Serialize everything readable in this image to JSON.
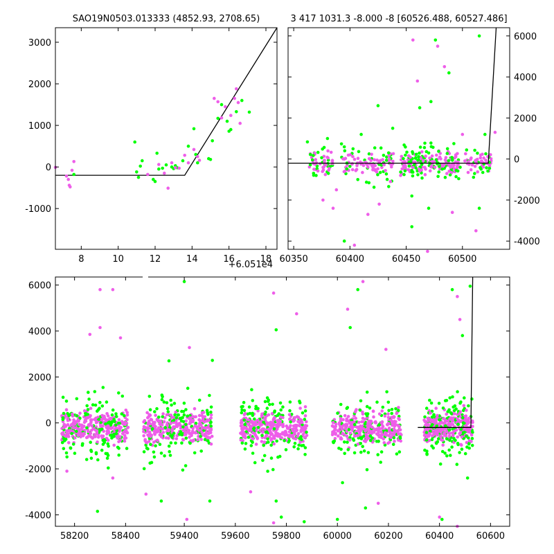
{
  "chart_data": [
    {
      "id": "zoom-left",
      "type": "scatter",
      "title": "SAO19N0503.013333 (4852.93, 2708.65)",
      "xlabel": "",
      "ylabel": "",
      "xlim": [
        6.6,
        18.6
      ],
      "ylim": [
        -1980,
        3350
      ],
      "xticks": [
        8,
        10,
        12,
        14,
        16,
        18
      ],
      "yticks": [
        -1000,
        0,
        1000,
        2000,
        3000
      ],
      "offset_text": "+6.051e4",
      "grid": false,
      "colors": {
        "green": "#00ff00",
        "magenta": "#ee5ee9",
        "model": "#000000"
      },
      "model_line": [
        [
          6.6,
          -200
        ],
        [
          13.6,
          -200
        ],
        [
          18.6,
          3350
        ]
      ],
      "series": [
        {
          "color": "green",
          "points": [
            [
              7.6,
              -180
            ],
            [
              10.9,
              600
            ],
            [
              11.0,
              -120
            ],
            [
              11.1,
              -250
            ],
            [
              11.2,
              20
            ],
            [
              11.3,
              150
            ],
            [
              11.9,
              -300
            ],
            [
              12.0,
              -350
            ],
            [
              12.1,
              330
            ],
            [
              12.2,
              -50
            ],
            [
              12.4,
              -30
            ],
            [
              12.6,
              50
            ],
            [
              12.9,
              0
            ],
            [
              13.0,
              -40
            ],
            [
              13.1,
              30
            ],
            [
              13.2,
              -20
            ],
            [
              13.5,
              150
            ],
            [
              13.8,
              500
            ],
            [
              14.1,
              920
            ],
            [
              14.2,
              300
            ],
            [
              14.3,
              100
            ],
            [
              14.9,
              200
            ],
            [
              15.0,
              180
            ],
            [
              15.1,
              630
            ],
            [
              15.4,
              1170
            ],
            [
              15.6,
              1500
            ],
            [
              15.9,
              1100
            ],
            [
              16.0,
              860
            ],
            [
              16.1,
              900
            ],
            [
              16.4,
              1330
            ],
            [
              16.7,
              1600
            ],
            [
              17.1,
              1320
            ]
          ]
        },
        {
          "color": "magenta",
          "points": [
            [
              6.6,
              -10
            ],
            [
              7.2,
              -220
            ],
            [
              7.3,
              -300
            ],
            [
              7.35,
              -440
            ],
            [
              7.4,
              -480
            ],
            [
              7.5,
              -80
            ],
            [
              7.6,
              130
            ],
            [
              11.6,
              -180
            ],
            [
              12.2,
              60
            ],
            [
              12.5,
              -150
            ],
            [
              12.7,
              -510
            ],
            [
              12.9,
              100
            ],
            [
              13.1,
              -20
            ],
            [
              13.3,
              -30
            ],
            [
              13.6,
              280
            ],
            [
              13.8,
              100
            ],
            [
              14.1,
              420
            ],
            [
              14.3,
              250
            ],
            [
              14.4,
              160
            ],
            [
              15.2,
              1650
            ],
            [
              15.4,
              1570
            ],
            [
              15.6,
              1180
            ],
            [
              15.8,
              1450
            ],
            [
              16.1,
              1240
            ],
            [
              16.3,
              1650
            ],
            [
              16.4,
              1880
            ],
            [
              16.5,
              1550
            ],
            [
              16.6,
              1050
            ]
          ]
        }
      ]
    },
    {
      "id": "zoom-right",
      "type": "scatter",
      "title": "3 417 1031.3 -8.000 -8 [60526.488, 60527.486]",
      "xlabel": "",
      "ylabel": "",
      "xlim": [
        60345,
        60542
      ],
      "ylim": [
        -4400,
        6400
      ],
      "xticks": [
        60350,
        60400,
        60450,
        60500
      ],
      "yticks": [
        -4000,
        -2000,
        0,
        2000,
        4000,
        6000
      ],
      "y_axis_side": "right",
      "grid": false,
      "colors": {
        "green": "#00ff00",
        "magenta": "#ee5ee9",
        "model": "#000000"
      },
      "model_line": [
        [
          60345,
          -200
        ],
        [
          60523,
          -200
        ],
        [
          60530,
          6400
        ]
      ],
      "series": [
        {
          "color": "green",
          "points": [
            [
              60476,
              5800
            ],
            [
              60472,
              2800
            ],
            [
              60520,
              1200
            ],
            [
              60425,
              2600
            ],
            [
              60462,
              2500
            ],
            [
              60410,
              1200
            ],
            [
              60380,
              1000
            ],
            [
              60498,
              -400
            ],
            [
              60455,
              -1800
            ],
            [
              60515,
              6000
            ],
            [
              60470,
              -2400
            ],
            [
              60395,
              -4000
            ],
            [
              60438,
              1500
            ],
            [
              60515,
              -2400
            ],
            [
              60488,
              4200
            ],
            [
              60455,
              -3300
            ]
          ]
        },
        {
          "color": "magenta",
          "points": [
            [
              60456,
              5800
            ],
            [
              60478,
              5500
            ],
            [
              60484,
              4500
            ],
            [
              60500,
              1200
            ],
            [
              60512,
              -3500
            ],
            [
              60469,
              -4500
            ],
            [
              60404,
              -4200
            ],
            [
              60416,
              -2700
            ],
            [
              60436,
              -1100
            ],
            [
              60376,
              -2000
            ],
            [
              60385,
              -2400
            ],
            [
              60426,
              -2200
            ],
            [
              60491,
              -2600
            ],
            [
              60529,
              1300
            ],
            [
              60460,
              3800
            ],
            [
              60388,
              -1500
            ],
            [
              60368,
              -500
            ]
          ]
        }
      ],
      "bands": [
        {
          "x": [
            60362,
            60385
          ],
          "weight": "medium"
        },
        {
          "x": [
            60392,
            60440
          ],
          "weight": "high"
        },
        {
          "x": [
            60445,
            60468
          ],
          "weight": "high"
        },
        {
          "x": [
            60470,
            60497
          ],
          "weight": "high"
        },
        {
          "x": [
            60502,
            60526
          ],
          "weight": "medium"
        }
      ]
    },
    {
      "id": "full",
      "type": "scatter",
      "title": "",
      "xlabel": "",
      "ylabel": "",
      "xlim": [
        58125,
        60675
      ],
      "ylim": [
        -4500,
        6350
      ],
      "xticks": [
        58200,
        58400,
        59400,
        59600,
        59800,
        60000,
        60200,
        60400,
        60600
      ],
      "yticks": [
        -4000,
        -2000,
        0,
        2000,
        4000,
        6000
      ],
      "broken_axis": {
        "gap_start": 58460,
        "gap_end": 59230,
        "segments": [
          [
            58125,
            58460
          ],
          [
            59230,
            60675
          ]
        ]
      },
      "grid": false,
      "colors": {
        "green": "#00ff00",
        "magenta": "#ee5ee9",
        "model": "#000000"
      },
      "model_line": [
        [
          60315,
          -200
        ],
        [
          60523,
          -200
        ],
        [
          60530,
          6350
        ]
      ],
      "seasons": [
        {
          "x": [
            58150,
            58410
          ]
        },
        {
          "x": [
            59240,
            59510
          ]
        },
        {
          "x": [
            59620,
            59880
          ]
        },
        {
          "x": [
            59980,
            60250
          ]
        },
        {
          "x": [
            60340,
            60530
          ]
        }
      ],
      "outliers": [
        {
          "color": "magenta",
          "x": 58300,
          "y": 5800
        },
        {
          "color": "magenta",
          "x": 58350,
          "y": 5800
        },
        {
          "color": "magenta",
          "x": 58300,
          "y": 4150
        },
        {
          "color": "magenta",
          "x": 58260,
          "y": 3850
        },
        {
          "color": "magenta",
          "x": 58380,
          "y": 3700
        },
        {
          "color": "green",
          "x": 58290,
          "y": -3850
        },
        {
          "color": "magenta",
          "x": 58170,
          "y": -2100
        },
        {
          "color": "magenta",
          "x": 58350,
          "y": -2400
        },
        {
          "color": "green",
          "x": 59400,
          "y": 6150
        },
        {
          "color": "magenta",
          "x": 59420,
          "y": 3280
        },
        {
          "color": "green",
          "x": 59510,
          "y": 2720
        },
        {
          "color": "green",
          "x": 59340,
          "y": 2700
        },
        {
          "color": "magenta",
          "x": 59410,
          "y": -4200
        },
        {
          "color": "green",
          "x": 59310,
          "y": -3400
        },
        {
          "color": "green",
          "x": 59500,
          "y": -3400
        },
        {
          "color": "magenta",
          "x": 59250,
          "y": -3100
        },
        {
          "color": "magenta",
          "x": 59750,
          "y": 5650
        },
        {
          "color": "magenta",
          "x": 59840,
          "y": 4750
        },
        {
          "color": "green",
          "x": 59760,
          "y": 4050
        },
        {
          "color": "green",
          "x": 59760,
          "y": -3400
        },
        {
          "color": "green",
          "x": 59780,
          "y": -4100
        },
        {
          "color": "magenta",
          "x": 59750,
          "y": -4350
        },
        {
          "color": "green",
          "x": 59870,
          "y": -4300
        },
        {
          "color": "magenta",
          "x": 59660,
          "y": -3000
        },
        {
          "color": "magenta",
          "x": 60100,
          "y": 6150
        },
        {
          "color": "green",
          "x": 60080,
          "y": 5800
        },
        {
          "color": "magenta",
          "x": 60040,
          "y": 4950
        },
        {
          "color": "green",
          "x": 60050,
          "y": 4150
        },
        {
          "color": "magenta",
          "x": 60190,
          "y": 3200
        },
        {
          "color": "green",
          "x": 60000,
          "y": -4200
        },
        {
          "color": "green",
          "x": 60110,
          "y": -3700
        },
        {
          "color": "magenta",
          "x": 60160,
          "y": -3500
        },
        {
          "color": "green",
          "x": 60020,
          "y": -2600
        },
        {
          "color": "green",
          "x": 60450,
          "y": 5800
        },
        {
          "color": "magenta",
          "x": 60470,
          "y": 5500
        },
        {
          "color": "green",
          "x": 60520,
          "y": 5950
        },
        {
          "color": "magenta",
          "x": 60480,
          "y": 4500
        },
        {
          "color": "green",
          "x": 60490,
          "y": 3800
        },
        {
          "color": "magenta",
          "x": 60400,
          "y": -4100
        },
        {
          "color": "green",
          "x": 60410,
          "y": -4200
        },
        {
          "color": "magenta",
          "x": 60470,
          "y": -4500
        },
        {
          "color": "green",
          "x": 60510,
          "y": -2400
        }
      ]
    }
  ]
}
